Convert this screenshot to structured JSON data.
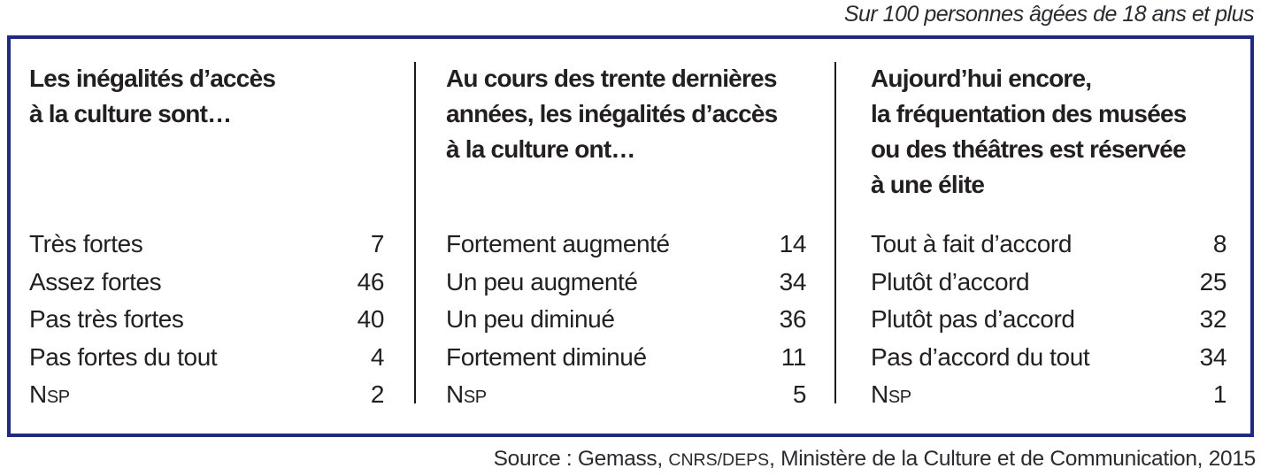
{
  "note": "Sur 100 personnes âgées de 18 ans et plus",
  "table": {
    "columns": [
      {
        "header": "Les inégalités d’accès\nà la culture sont…",
        "rows": [
          {
            "label": "Très fortes",
            "value": "7"
          },
          {
            "label": "Assez fortes",
            "value": "46"
          },
          {
            "label": "Pas très fortes",
            "value": "40"
          },
          {
            "label": "Pas fortes du tout",
            "value": "4"
          },
          {
            "label": "Nsp",
            "value": "2"
          }
        ]
      },
      {
        "header": "Au cours des trente dernières\nannées, les inégalités d’accès\nà la culture ont…",
        "rows": [
          {
            "label": "Fortement augmenté",
            "value": "14"
          },
          {
            "label": "Un peu augmenté",
            "value": "34"
          },
          {
            "label": "Un peu diminué",
            "value": "36"
          },
          {
            "label": "Fortement diminué",
            "value": "11"
          },
          {
            "label": "Nsp",
            "value": "5"
          }
        ]
      },
      {
        "header": "Aujourd’hui encore,\nla fréquentation des musées\nou des théâtres est réservée\nà une élite",
        "rows": [
          {
            "label": "Tout à fait d’accord",
            "value": "8"
          },
          {
            "label": "Plutôt d’accord",
            "value": "25"
          },
          {
            "label": "Plutôt pas d’accord",
            "value": "32"
          },
          {
            "label": "Pas d’accord du tout",
            "value": "34"
          },
          {
            "label": "Nsp",
            "value": "1"
          }
        ]
      }
    ]
  },
  "source": {
    "prefix": "Source : Gemass, ",
    "acronym": "CNRS/DEPS",
    "suffix": ", Ministère de la Culture et de Communication, 2015"
  },
  "colors": {
    "border": "#1e2b80",
    "divider": "#1a1a1a",
    "text": "#231f20"
  }
}
